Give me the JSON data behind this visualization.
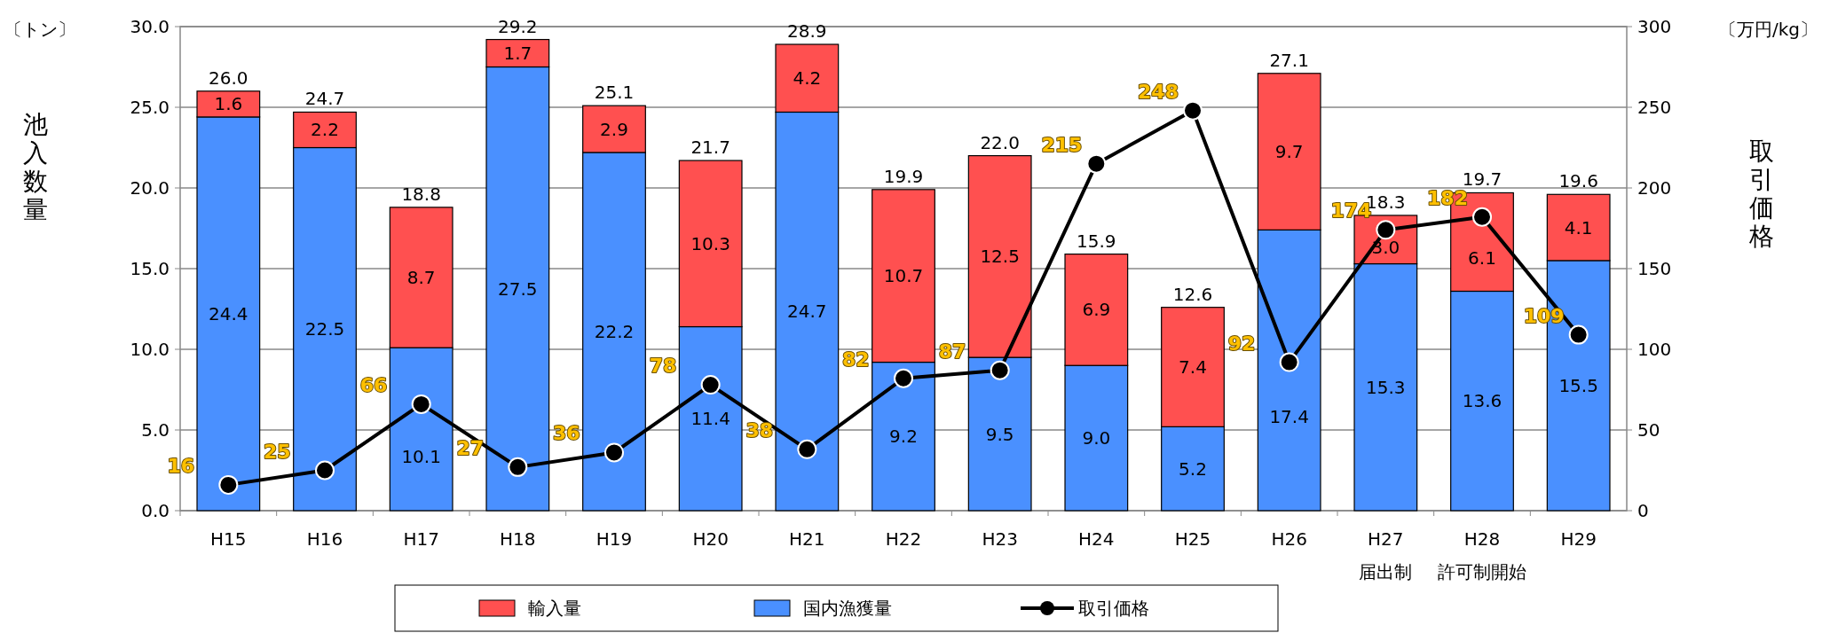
{
  "chart_data": {
    "type": "bar",
    "stacked": true,
    "ylabel": "池入数量",
    "y2label": "取引価格",
    "categories": [
      "H15",
      "H16",
      "H17",
      "H18",
      "H19",
      "H20",
      "H21",
      "H22",
      "H23",
      "H24",
      "H25",
      "H26",
      "H27",
      "H28",
      "H29"
    ],
    "series": [
      {
        "name": "国内漁獲量",
        "color": "#4a90ff",
        "values": [
          24.4,
          22.5,
          10.1,
          27.5,
          22.2,
          11.4,
          24.7,
          9.2,
          9.5,
          9.0,
          5.2,
          17.4,
          15.3,
          13.6,
          15.5
        ],
        "value_labels": [
          "24.4",
          "22.5",
          "10.1",
          "27.5",
          "22.2",
          "11.4",
          "24.7",
          "9.2",
          "9.5",
          "9.0",
          "5.2",
          "17.4",
          "15.3",
          "13.6",
          "15.5"
        ]
      },
      {
        "name": "輸入量",
        "color": "#ff5050",
        "values": [
          1.6,
          2.2,
          8.7,
          1.7,
          2.9,
          10.3,
          4.2,
          10.7,
          12.5,
          6.9,
          7.4,
          9.7,
          3.0,
          6.1,
          4.1
        ],
        "value_labels": [
          "1.6",
          "2.2",
          "8.7",
          "1.7",
          "2.9",
          "10.3",
          "4.2",
          "10.7",
          "12.5",
          "6.9",
          "7.4",
          "9.7",
          "3.0",
          "6.1",
          "4.1"
        ]
      },
      {
        "name": "取引価格",
        "type": "line",
        "axis": "y2",
        "color": "#000000",
        "marker": "circle",
        "values": [
          16,
          25,
          66,
          27,
          36,
          78,
          38,
          82,
          87,
          215,
          248,
          92,
          174,
          182,
          109
        ]
      }
    ],
    "totals": [
      "26.0",
      "24.7",
      "18.8",
      "29.2",
      "25.1",
      "21.7",
      "28.9",
      "19.9",
      "22.0",
      "15.9",
      "12.6",
      "27.1",
      "18.3",
      "19.7",
      "19.6"
    ],
    "data_labels": true,
    "ylim": [
      0,
      30
    ],
    "yticks": [
      {
        "value": 0,
        "label": "0.0"
      },
      {
        "value": 5,
        "label": "5.0"
      },
      {
        "value": 10,
        "label": "10.0"
      },
      {
        "value": 15,
        "label": "15.0"
      },
      {
        "value": 20,
        "label": "20.0"
      },
      {
        "value": 25,
        "label": "25.0"
      },
      {
        "value": 30,
        "label": "30.0"
      }
    ],
    "y2lim": [
      0,
      300
    ],
    "y2ticks": [
      0,
      50,
      100,
      150,
      200,
      250,
      300
    ],
    "grid": "y",
    "legend": "bottom",
    "annotations": [
      "〔トン〕",
      "〔万円/kg〕",
      "届出制",
      "許可制開始"
    ]
  }
}
